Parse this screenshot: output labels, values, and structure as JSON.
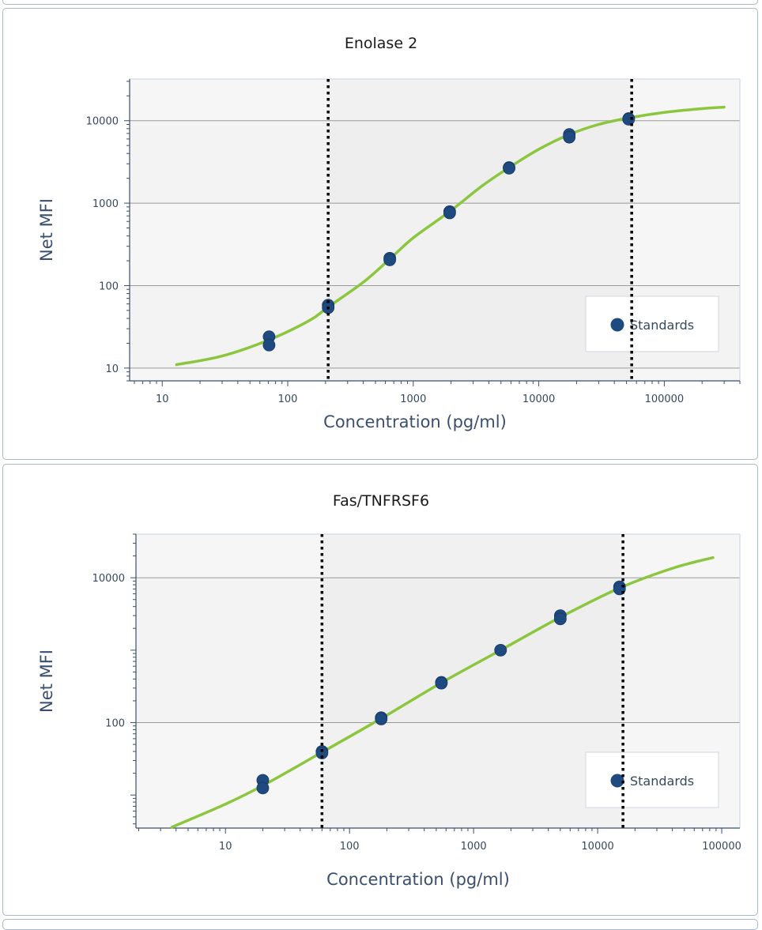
{
  "colors": {
    "curve": "#8cc63f",
    "point": "#1f4a80",
    "axis": "#3a4f6e",
    "gridline": "#9a9a9a",
    "band_light": "#f6f6f6",
    "band_dark": "#f1f1f1",
    "panel_border": "#a9b7cc"
  },
  "chart_data": [
    {
      "type": "scatter",
      "title": "Enolase 2",
      "xlabel": "Concentration (pg/ml)",
      "ylabel": "Net MFI",
      "x_scale": "log",
      "y_scale": "log",
      "xlim": [
        5.5,
        400000
      ],
      "ylim": [
        7,
        32000
      ],
      "x_ticks": [
        10,
        100,
        1000,
        10000,
        100000
      ],
      "x_tick_labels": [
        "10",
        "100",
        "1000",
        "10000",
        "100000"
      ],
      "y_ticks": [
        10,
        100,
        1000,
        10000
      ],
      "y_tick_labels": [
        "10",
        "100",
        "1000",
        "10000"
      ],
      "grid": true,
      "legend": {
        "position": "bottom-right",
        "entries": [
          "Standards"
        ]
      },
      "range_limits": [
        210,
        55000
      ],
      "series": [
        {
          "name": "Standards",
          "type": "scatter",
          "x": [
            71,
            71,
            210,
            210,
            650,
            650,
            1950,
            1950,
            5800,
            5800,
            17500,
            17500,
            52000,
            52000
          ],
          "y": [
            24,
            19,
            58,
            54,
            215,
            205,
            790,
            760,
            2700,
            2650,
            6800,
            6300,
            10600,
            10400
          ]
        },
        {
          "type": "line",
          "x": [
            13,
            30,
            71,
            150,
            210,
            400,
            650,
            1000,
            1950,
            3500,
            5800,
            10000,
            17500,
            30000,
            52000,
            100000,
            200000,
            300000
          ],
          "y": [
            11,
            14,
            22,
            38,
            55,
            110,
            210,
            380,
            790,
            1600,
            2700,
            4500,
            6800,
            9000,
            10800,
            12600,
            14000,
            14600
          ]
        }
      ]
    },
    {
      "type": "scatter",
      "title": "Fas/TNFRSF6",
      "xlabel": "Concentration (pg/ml)",
      "ylabel": "Net MFI",
      "x_scale": "log",
      "y_scale": "log",
      "xlim": [
        1.9,
        140000
      ],
      "ylim": [
        3.5,
        40000
      ],
      "x_ticks": [
        10,
        100,
        1000,
        10000,
        100000
      ],
      "x_tick_labels": [
        "10",
        "100",
        "1000",
        "10000",
        "100000"
      ],
      "y_ticks": [
        100,
        10000
      ],
      "y_tick_labels": [
        "100",
        "10000"
      ],
      "grid": true,
      "legend": {
        "position": "bottom-right",
        "entries": [
          "Standards"
        ]
      },
      "range_limits": [
        60,
        16000
      ],
      "series": [
        {
          "name": "Standards",
          "type": "scatter",
          "x": [
            20,
            20,
            60,
            60,
            180,
            180,
            550,
            550,
            1650,
            5000,
            5000,
            15000,
            15000
          ],
          "y": [
            16,
            12.5,
            40,
            38,
            117,
            112,
            360,
            350,
            1000,
            3000,
            2700,
            7500,
            7000
          ]
        },
        {
          "type": "line",
          "x": [
            3.7,
            10,
            20,
            60,
            180,
            550,
            1650,
            5000,
            15000,
            40000,
            85000
          ],
          "y": [
            3.6,
            7.5,
            13.5,
            39,
            114,
            355,
            1000,
            2850,
            7200,
            13500,
            19000
          ]
        }
      ]
    }
  ]
}
